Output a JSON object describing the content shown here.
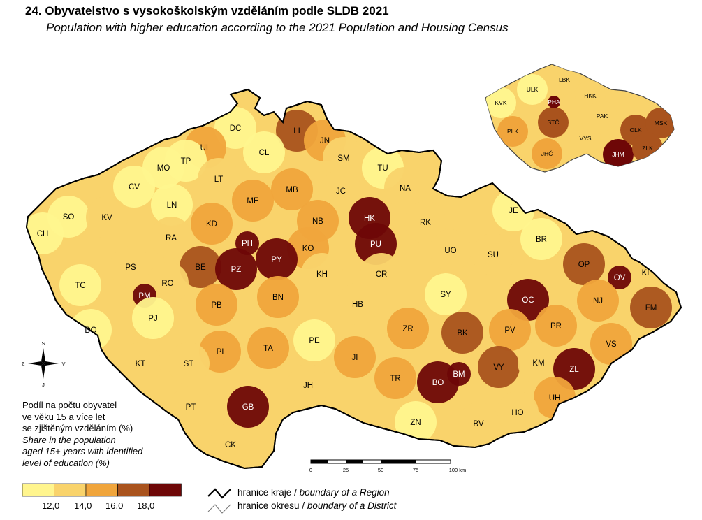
{
  "title": "24. Obyvatelstvo s vysokoškolským vzděláním podle SLDB 2021",
  "subtitle": "Population with higher education according to the 2021 Population and Housing Census",
  "colors": {
    "c1": "#FFF58E",
    "c2": "#F9D36B",
    "c3": "#F0A53C",
    "c4": "#A9531D",
    "c5": "#6E0707"
  },
  "compass": {
    "n": "S",
    "s": "J",
    "w": "Z",
    "e": "V"
  },
  "districts": [
    {
      "code": "DC",
      "cls": 1
    },
    {
      "code": "LI",
      "cls": 4
    },
    {
      "code": "JN",
      "cls": 3
    },
    {
      "code": "CL",
      "cls": 1
    },
    {
      "code": "UL",
      "cls": 3
    },
    {
      "code": "TP",
      "cls": 1
    },
    {
      "code": "MO",
      "cls": 1
    },
    {
      "code": "SM",
      "cls": 2
    },
    {
      "code": "TU",
      "cls": 1
    },
    {
      "code": "LT",
      "cls": 2
    },
    {
      "code": "CV",
      "cls": 1
    },
    {
      "code": "LN",
      "cls": 1
    },
    {
      "code": "MB",
      "cls": 3
    },
    {
      "code": "JC",
      "cls": 2
    },
    {
      "code": "NA",
      "cls": 2
    },
    {
      "code": "ME",
      "cls": 3
    },
    {
      "code": "SO",
      "cls": 1
    },
    {
      "code": "KV",
      "cls": 2
    },
    {
      "code": "HK",
      "cls": 5
    },
    {
      "code": "NB",
      "cls": 3
    },
    {
      "code": "RK",
      "cls": 2
    },
    {
      "code": "KD",
      "cls": 3
    },
    {
      "code": "JE",
      "cls": 1
    },
    {
      "code": "CH",
      "cls": 1
    },
    {
      "code": "RA",
      "cls": 2
    },
    {
      "code": "PH",
      "cls": 5
    },
    {
      "code": "PU",
      "cls": 5
    },
    {
      "code": "BR",
      "cls": 1
    },
    {
      "code": "KO",
      "cls": 3
    },
    {
      "code": "UO",
      "cls": 2
    },
    {
      "code": "SU",
      "cls": 2
    },
    {
      "code": "PY",
      "cls": 5
    },
    {
      "code": "OP",
      "cls": 4
    },
    {
      "code": "PS",
      "cls": 2
    },
    {
      "code": "BE",
      "cls": 4
    },
    {
      "code": "PZ",
      "cls": 5
    },
    {
      "code": "KI",
      "cls": 2
    },
    {
      "code": "KH",
      "cls": 2
    },
    {
      "code": "CR",
      "cls": 2
    },
    {
      "code": "OV",
      "cls": 5
    },
    {
      "code": "RO",
      "cls": 2
    },
    {
      "code": "TC",
      "cls": 1
    },
    {
      "code": "PM",
      "cls": 5
    },
    {
      "code": "SY",
      "cls": 1
    },
    {
      "code": "BN",
      "cls": 3
    },
    {
      "code": "OC",
      "cls": 5
    },
    {
      "code": "NJ",
      "cls": 3
    },
    {
      "code": "PB",
      "cls": 3
    },
    {
      "code": "HB",
      "cls": 2
    },
    {
      "code": "FM",
      "cls": 4
    },
    {
      "code": "PJ",
      "cls": 1
    },
    {
      "code": "DO",
      "cls": 1
    },
    {
      "code": "BK",
      "cls": 4
    },
    {
      "code": "PV",
      "cls": 3
    },
    {
      "code": "PR",
      "cls": 3
    },
    {
      "code": "ZR",
      "cls": 3
    },
    {
      "code": "PE",
      "cls": 1
    },
    {
      "code": "VS",
      "cls": 3
    },
    {
      "code": "PI",
      "cls": 3
    },
    {
      "code": "TA",
      "cls": 3
    },
    {
      "code": "KT",
      "cls": 2
    },
    {
      "code": "JI",
      "cls": 3
    },
    {
      "code": "VY",
      "cls": 4
    },
    {
      "code": "KM",
      "cls": 2
    },
    {
      "code": "ST",
      "cls": 2
    },
    {
      "code": "ZL",
      "cls": 5
    },
    {
      "code": "BM",
      "cls": 5
    },
    {
      "code": "BO",
      "cls": 5
    },
    {
      "code": "TR",
      "cls": 3
    },
    {
      "code": "JH",
      "cls": 2
    },
    {
      "code": "UH",
      "cls": 3
    },
    {
      "code": "PT",
      "cls": 2
    },
    {
      "code": "GB",
      "cls": 5
    },
    {
      "code": "HO",
      "cls": 2
    },
    {
      "code": "ZN",
      "cls": 1
    },
    {
      "code": "BV",
      "cls": 2
    },
    {
      "code": "CK",
      "cls": 2
    }
  ],
  "regions": [
    {
      "code": "KVK",
      "cls": 1
    },
    {
      "code": "ULK",
      "cls": 1
    },
    {
      "code": "LBK",
      "cls": 2
    },
    {
      "code": "HKK",
      "cls": 2
    },
    {
      "code": "PHA",
      "cls": 5
    },
    {
      "code": "STČ",
      "cls": 4
    },
    {
      "code": "PAK",
      "cls": 2
    },
    {
      "code": "OLK",
      "cls": 4
    },
    {
      "code": "MSK",
      "cls": 4
    },
    {
      "code": "PLK",
      "cls": 3
    },
    {
      "code": "VYS",
      "cls": 2
    },
    {
      "code": "JHČ",
      "cls": 3
    },
    {
      "code": "JHM",
      "cls": 5
    },
    {
      "code": "ZLK",
      "cls": 4
    }
  ],
  "scale": {
    "labels": [
      "0",
      "25",
      "50",
      "75",
      "100 km"
    ]
  },
  "legend": {
    "title_cz": [
      "Podíl na počtu obyvatel",
      "ve věku 15 a více let",
      "se zjištěným vzděláním (%)"
    ],
    "title_en": [
      "Share in the population",
      "aged 15+ years with identified",
      "level of education (%)"
    ],
    "breaks": [
      "12,0",
      "14,0",
      "16,0",
      "18,0"
    ]
  },
  "boundaries": {
    "region_cz": "hranice kraje",
    "region_en": "boundary of a Region",
    "district_cz": "hranice okresu",
    "district_en": "boundary of a District",
    "separator": "/"
  }
}
